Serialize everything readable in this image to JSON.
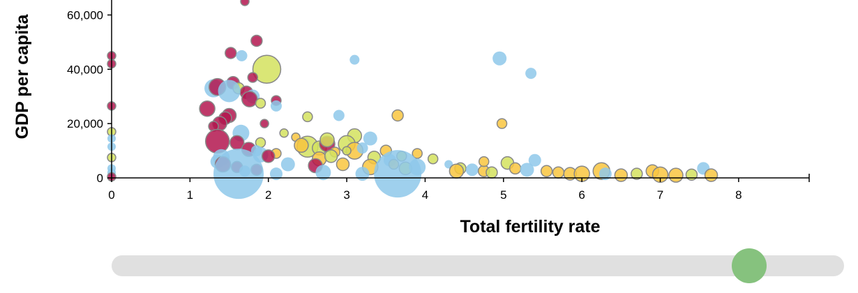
{
  "chart_data": {
    "type": "scatter",
    "title": "",
    "xlabel": "Total fertility rate",
    "ylabel": "GDP per capita",
    "xlim": [
      0,
      8.9
    ],
    "ylim": [
      0,
      65000
    ],
    "x_ticks": [
      0,
      1,
      2,
      3,
      4,
      5,
      6,
      7,
      8
    ],
    "y_ticks": [
      0,
      20000,
      40000,
      60000
    ],
    "x_tick_labels": [
      "0",
      "1",
      "2",
      "3",
      "4",
      "5",
      "6",
      "7",
      "8"
    ],
    "y_tick_labels": [
      "0",
      "20,000",
      "40,000",
      "60,000"
    ],
    "grid": false,
    "colors": {
      "crimson": "#b3164f",
      "olive": "#d4e25e",
      "blue": "#8ec8ea",
      "gold": "#f9c640"
    },
    "points": [
      {
        "x": 0,
        "y": 45000,
        "size": 6,
        "color": "crimson"
      },
      {
        "x": 0,
        "y": 42000,
        "size": 6,
        "color": "crimson"
      },
      {
        "x": 0,
        "y": 26500,
        "size": 6,
        "color": "crimson"
      },
      {
        "x": 0,
        "y": 17000,
        "size": 6,
        "color": "olive"
      },
      {
        "x": 0,
        "y": 14500,
        "size": 6,
        "color": "blue"
      },
      {
        "x": 0,
        "y": 11500,
        "size": 6,
        "color": "blue"
      },
      {
        "x": 0,
        "y": 7500,
        "size": 6,
        "color": "olive"
      },
      {
        "x": 0,
        "y": 3500,
        "size": 6,
        "color": "blue"
      },
      {
        "x": 0,
        "y": 2000,
        "size": 6,
        "color": "blue"
      },
      {
        "x": 0,
        "y": 400,
        "size": 6,
        "color": "crimson"
      },
      {
        "x": 1.7,
        "y": 65000,
        "size": 6,
        "color": "crimson"
      },
      {
        "x": 1.85,
        "y": 50500,
        "size": 8,
        "color": "crimson"
      },
      {
        "x": 1.52,
        "y": 46000,
        "size": 8,
        "color": "crimson"
      },
      {
        "x": 1.66,
        "y": 45000,
        "size": 8,
        "color": "blue"
      },
      {
        "x": 1.98,
        "y": 40000,
        "size": 20,
        "color": "olive"
      },
      {
        "x": 1.8,
        "y": 37000,
        "size": 7,
        "color": "crimson"
      },
      {
        "x": 1.55,
        "y": 35000,
        "size": 9,
        "color": "crimson"
      },
      {
        "x": 1.3,
        "y": 33000,
        "size": 13,
        "color": "blue"
      },
      {
        "x": 1.35,
        "y": 33500,
        "size": 12,
        "color": "crimson"
      },
      {
        "x": 1.62,
        "y": 33000,
        "size": 8,
        "color": "olive"
      },
      {
        "x": 1.72,
        "y": 31500,
        "size": 9,
        "color": "crimson"
      },
      {
        "x": 1.5,
        "y": 32000,
        "size": 16,
        "color": "blue"
      },
      {
        "x": 1.8,
        "y": 30000,
        "size": 10,
        "color": "blue"
      },
      {
        "x": 1.76,
        "y": 29000,
        "size": 11,
        "color": "crimson"
      },
      {
        "x": 1.9,
        "y": 27500,
        "size": 7,
        "color": "olive"
      },
      {
        "x": 2.1,
        "y": 28500,
        "size": 7,
        "color": "crimson"
      },
      {
        "x": 2.1,
        "y": 26500,
        "size": 8,
        "color": "blue"
      },
      {
        "x": 1.22,
        "y": 25500,
        "size": 11,
        "color": "crimson"
      },
      {
        "x": 1.5,
        "y": 23000,
        "size": 10,
        "color": "crimson"
      },
      {
        "x": 1.45,
        "y": 22000,
        "size": 9,
        "color": "crimson"
      },
      {
        "x": 2.5,
        "y": 22500,
        "size": 7,
        "color": "olive"
      },
      {
        "x": 2.9,
        "y": 23000,
        "size": 8,
        "color": "blue"
      },
      {
        "x": 3.65,
        "y": 23000,
        "size": 8,
        "color": "gold"
      },
      {
        "x": 1.38,
        "y": 20000,
        "size": 10,
        "color": "crimson"
      },
      {
        "x": 1.3,
        "y": 19000,
        "size": 7,
        "color": "crimson"
      },
      {
        "x": 1.95,
        "y": 20000,
        "size": 6,
        "color": "crimson"
      },
      {
        "x": 1.65,
        "y": 16500,
        "size": 12,
        "color": "blue"
      },
      {
        "x": 2.2,
        "y": 16500,
        "size": 6,
        "color": "olive"
      },
      {
        "x": 2.35,
        "y": 15000,
        "size": 6,
        "color": "gold"
      },
      {
        "x": 3.1,
        "y": 15500,
        "size": 10,
        "color": "olive"
      },
      {
        "x": 3.3,
        "y": 14500,
        "size": 10,
        "color": "blue"
      },
      {
        "x": 1.35,
        "y": 13500,
        "size": 17,
        "color": "crimson"
      },
      {
        "x": 1.6,
        "y": 13000,
        "size": 10,
        "color": "crimson"
      },
      {
        "x": 1.9,
        "y": 13000,
        "size": 7,
        "color": "olive"
      },
      {
        "x": 2.45,
        "y": 12500,
        "size": 9,
        "color": "blue"
      },
      {
        "x": 2.5,
        "y": 11500,
        "size": 15,
        "color": "olive"
      },
      {
        "x": 2.42,
        "y": 12000,
        "size": 10,
        "color": "gold"
      },
      {
        "x": 2.65,
        "y": 11000,
        "size": 10,
        "color": "olive"
      },
      {
        "x": 2.75,
        "y": 12500,
        "size": 11,
        "color": "crimson"
      },
      {
        "x": 2.75,
        "y": 14000,
        "size": 10,
        "color": "olive"
      },
      {
        "x": 3.0,
        "y": 12500,
        "size": 12,
        "color": "olive"
      },
      {
        "x": 3.1,
        "y": 10000,
        "size": 12,
        "color": "gold"
      },
      {
        "x": 3.0,
        "y": 10000,
        "size": 6,
        "color": "olive"
      },
      {
        "x": 3.2,
        "y": 11000,
        "size": 8,
        "color": "blue"
      },
      {
        "x": 2.85,
        "y": 9500,
        "size": 7,
        "color": "gold"
      },
      {
        "x": 2.1,
        "y": 9000,
        "size": 7,
        "color": "gold"
      },
      {
        "x": 1.75,
        "y": 10500,
        "size": 10,
        "color": "crimson"
      },
      {
        "x": 1.85,
        "y": 10000,
        "size": 8,
        "color": "blue"
      },
      {
        "x": 1.9,
        "y": 8500,
        "size": 11,
        "color": "blue"
      },
      {
        "x": 2.0,
        "y": 8000,
        "size": 9,
        "color": "crimson"
      },
      {
        "x": 1.4,
        "y": 7500,
        "size": 12,
        "color": "blue"
      },
      {
        "x": 2.65,
        "y": 7000,
        "size": 10,
        "color": "gold"
      },
      {
        "x": 2.8,
        "y": 8000,
        "size": 9,
        "color": "olive"
      },
      {
        "x": 3.5,
        "y": 10000,
        "size": 8,
        "color": "gold"
      },
      {
        "x": 3.35,
        "y": 7500,
        "size": 9,
        "color": "olive"
      },
      {
        "x": 3.7,
        "y": 8000,
        "size": 7,
        "color": "olive"
      },
      {
        "x": 3.55,
        "y": 6500,
        "size": 9,
        "color": "blue"
      },
      {
        "x": 3.6,
        "y": 5000,
        "size": 7,
        "color": "gold"
      },
      {
        "x": 3.9,
        "y": 9000,
        "size": 7,
        "color": "gold"
      },
      {
        "x": 4.1,
        "y": 7000,
        "size": 7,
        "color": "olive"
      },
      {
        "x": 2.25,
        "y": 5000,
        "size": 10,
        "color": "blue"
      },
      {
        "x": 2.6,
        "y": 4500,
        "size": 10,
        "color": "crimson"
      },
      {
        "x": 2.95,
        "y": 5000,
        "size": 9,
        "color": "gold"
      },
      {
        "x": 3.3,
        "y": 4000,
        "size": 11,
        "color": "gold"
      },
      {
        "x": 3.75,
        "y": 3500,
        "size": 9,
        "color": "olive"
      },
      {
        "x": 3.9,
        "y": 4000,
        "size": 12,
        "color": "blue"
      },
      {
        "x": 1.35,
        "y": 6000,
        "size": 10,
        "color": "blue"
      },
      {
        "x": 1.42,
        "y": 5000,
        "size": 11,
        "color": "crimson"
      },
      {
        "x": 1.6,
        "y": 4000,
        "size": 8,
        "color": "crimson"
      },
      {
        "x": 1.85,
        "y": 3000,
        "size": 8,
        "color": "crimson"
      },
      {
        "x": 1.7,
        "y": 2500,
        "size": 8,
        "color": "blue"
      },
      {
        "x": 1.62,
        "y": 1500,
        "size": 36,
        "color": "blue"
      },
      {
        "x": 2.1,
        "y": 1500,
        "size": 9,
        "color": "blue"
      },
      {
        "x": 2.7,
        "y": 2000,
        "size": 11,
        "color": "blue"
      },
      {
        "x": 3.2,
        "y": 1500,
        "size": 10,
        "color": "blue"
      },
      {
        "x": 3.65,
        "y": 1500,
        "size": 34,
        "color": "blue"
      },
      {
        "x": 4.3,
        "y": 5000,
        "size": 6,
        "color": "blue"
      },
      {
        "x": 4.45,
        "y": 3500,
        "size": 8,
        "color": "olive"
      },
      {
        "x": 4.4,
        "y": 2500,
        "size": 10,
        "color": "gold"
      },
      {
        "x": 4.6,
        "y": 3000,
        "size": 9,
        "color": "blue"
      },
      {
        "x": 4.75,
        "y": 2500,
        "size": 8,
        "color": "gold"
      },
      {
        "x": 4.75,
        "y": 6000,
        "size": 7,
        "color": "gold"
      },
      {
        "x": 4.85,
        "y": 2000,
        "size": 8,
        "color": "olive"
      },
      {
        "x": 4.95,
        "y": 44000,
        "size": 10,
        "color": "blue"
      },
      {
        "x": 5.35,
        "y": 38500,
        "size": 8,
        "color": "blue"
      },
      {
        "x": 3.1,
        "y": 43500,
        "size": 7,
        "color": "blue"
      },
      {
        "x": 4.98,
        "y": 20000,
        "size": 7,
        "color": "gold"
      },
      {
        "x": 5.05,
        "y": 5500,
        "size": 9,
        "color": "olive"
      },
      {
        "x": 5.15,
        "y": 3500,
        "size": 8,
        "color": "gold"
      },
      {
        "x": 5.3,
        "y": 3000,
        "size": 10,
        "color": "blue"
      },
      {
        "x": 5.4,
        "y": 6500,
        "size": 9,
        "color": "blue"
      },
      {
        "x": 5.55,
        "y": 2500,
        "size": 8,
        "color": "gold"
      },
      {
        "x": 5.7,
        "y": 2000,
        "size": 8,
        "color": "gold"
      },
      {
        "x": 5.85,
        "y": 1500,
        "size": 9,
        "color": "gold"
      },
      {
        "x": 6.0,
        "y": 1500,
        "size": 11,
        "color": "gold"
      },
      {
        "x": 6.25,
        "y": 2500,
        "size": 12,
        "color": "gold"
      },
      {
        "x": 6.3,
        "y": 1500,
        "size": 9,
        "color": "blue"
      },
      {
        "x": 6.5,
        "y": 1000,
        "size": 9,
        "color": "gold"
      },
      {
        "x": 6.7,
        "y": 1500,
        "size": 8,
        "color": "olive"
      },
      {
        "x": 6.9,
        "y": 2500,
        "size": 9,
        "color": "gold"
      },
      {
        "x": 7.0,
        "y": 1200,
        "size": 11,
        "color": "gold"
      },
      {
        "x": 7.2,
        "y": 1000,
        "size": 10,
        "color": "gold"
      },
      {
        "x": 7.4,
        "y": 1200,
        "size": 8,
        "color": "olive"
      },
      {
        "x": 7.55,
        "y": 3500,
        "size": 9,
        "color": "blue"
      },
      {
        "x": 7.65,
        "y": 1000,
        "size": 9,
        "color": "gold"
      }
    ]
  },
  "slider": {
    "value": 0.87
  }
}
